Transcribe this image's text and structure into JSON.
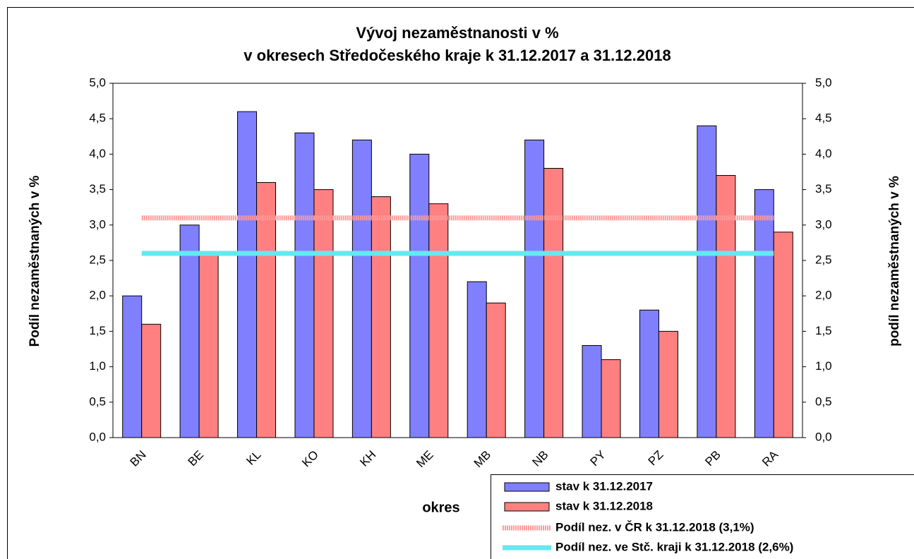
{
  "chart_data": {
    "type": "bar",
    "title": [
      "Vývoj nezaměstnanosti v %",
      "v okresech Středočeského kraje k 31.12.2017 a 31.12.2018"
    ],
    "x_label": "okres",
    "y_label": "Podíl nezaměstnaných v %",
    "y2_label": "podíl nezaměstnaných v %",
    "categories": [
      "BN",
      "BE",
      "KL",
      "KO",
      "KH",
      "ME",
      "MB",
      "NB",
      "PY",
      "PZ",
      "PB",
      "RA"
    ],
    "series": [
      {
        "name": "stav k 31.12.2017",
        "color": "#8080ff",
        "values": [
          2.0,
          3.0,
          4.6,
          4.3,
          4.2,
          4.0,
          2.2,
          4.2,
          1.3,
          1.8,
          4.4,
          3.5
        ]
      },
      {
        "name": "stav k 31.12.2018",
        "color": "#ff8080",
        "values": [
          1.6,
          2.6,
          3.6,
          3.5,
          3.4,
          3.3,
          1.9,
          3.8,
          1.1,
          1.5,
          3.7,
          2.9
        ]
      }
    ],
    "lines": [
      {
        "name": "Podíl nez. v ČR k 31.12.2018 (3,1%)",
        "color": "#ff9999",
        "value": 3.1
      },
      {
        "name": "Podíl nez. ve Stč. kraji k 31.12.2018 (2,6%)",
        "color": "#66e8f0",
        "value": 2.6
      }
    ],
    "ylim": [
      0,
      5
    ],
    "yticks": [
      {
        "value": 0,
        "label": "0,0"
      },
      {
        "value": 0.5,
        "label": "0,5"
      },
      {
        "value": 1,
        "label": "1,0"
      },
      {
        "value": 1.5,
        "label": "1,5"
      },
      {
        "value": 2,
        "label": "2,0"
      },
      {
        "value": 2.5,
        "label": "2,5"
      },
      {
        "value": 3,
        "label": "3,0"
      },
      {
        "value": 3.5,
        "label": "3,5"
      },
      {
        "value": 4,
        "label": "4,0"
      },
      {
        "value": 4.5,
        "label": "4,5"
      },
      {
        "value": 5,
        "label": "5,0"
      }
    ],
    "y2lim": [
      0,
      5
    ],
    "y2ticks": [
      {
        "value": 0,
        "label": "0,0"
      },
      {
        "value": 0.5,
        "label": "0,5"
      },
      {
        "value": 1,
        "label": "1,0"
      },
      {
        "value": 1.5,
        "label": "1,5"
      },
      {
        "value": 2,
        "label": "2,0"
      },
      {
        "value": 2.5,
        "label": "2,5"
      },
      {
        "value": 3,
        "label": "3,0"
      },
      {
        "value": 3.5,
        "label": "3,5"
      },
      {
        "value": 4,
        "label": "4,0"
      },
      {
        "value": 4.5,
        "label": "4,5"
      },
      {
        "value": 5,
        "label": "5,0"
      }
    ],
    "grid": false
  }
}
